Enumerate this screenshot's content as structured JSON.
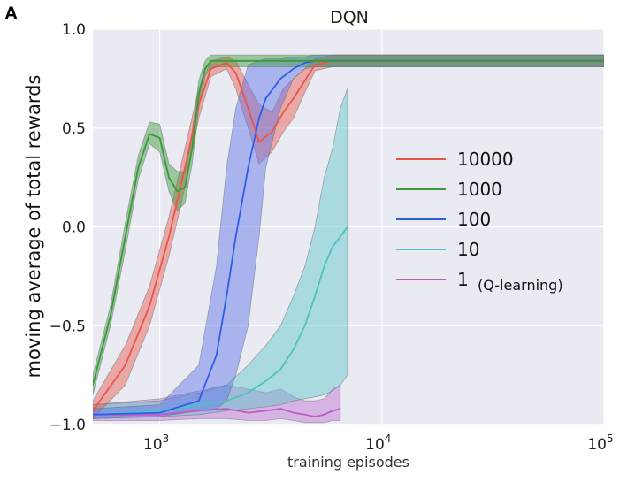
{
  "panel_letter": "A",
  "chart_data": {
    "type": "line",
    "title": "DQN",
    "xlabel": "training episodes",
    "ylabel": "moving average of total rewards",
    "xscale": "log",
    "xlim": [
      500,
      100000
    ],
    "ylim": [
      -1.0,
      1.0
    ],
    "grid": true,
    "legend_placement": "right",
    "y_ticks": [
      "−1.0",
      "−0.5",
      "0.0",
      "0.5",
      "1.0"
    ],
    "x_ticks": [
      {
        "base": "10",
        "exp": "3",
        "value": 1000
      },
      {
        "base": "10",
        "exp": "4",
        "value": 10000
      },
      {
        "base": "10",
        "exp": "5",
        "value": 100000
      }
    ],
    "legend_note": "(Q-learning)",
    "series": [
      {
        "name": "10000",
        "color": "#e8564a",
        "band_color": "#e8564a",
        "x": [
          500,
          700,
          900,
          1100,
          1300,
          1500,
          1700,
          2000,
          2200,
          2500,
          2800,
          3200,
          3600,
          4000,
          4500,
          5000,
          6000,
          8000,
          10000,
          20000,
          50000,
          100000
        ],
        "y": [
          -0.93,
          -0.7,
          -0.4,
          -0.05,
          0.3,
          0.62,
          0.8,
          0.83,
          0.78,
          0.6,
          0.43,
          0.48,
          0.58,
          0.65,
          0.74,
          0.82,
          0.84,
          0.84,
          0.84,
          0.84,
          0.84,
          0.84
        ],
        "lo": [
          -0.97,
          -0.8,
          -0.5,
          -0.15,
          0.2,
          0.55,
          0.76,
          0.8,
          0.7,
          0.5,
          0.32,
          0.38,
          0.48,
          0.55,
          0.68,
          0.79,
          0.81,
          0.81,
          0.81,
          0.81,
          0.81,
          0.81
        ],
        "hi": [
          -0.88,
          -0.6,
          -0.3,
          0.05,
          0.4,
          0.7,
          0.84,
          0.86,
          0.84,
          0.72,
          0.62,
          0.58,
          0.7,
          0.75,
          0.8,
          0.85,
          0.87,
          0.87,
          0.87,
          0.87,
          0.87,
          0.87
        ]
      },
      {
        "name": "1000",
        "color": "#3a9a3a",
        "band_color": "#3a9a3a",
        "x": [
          500,
          600,
          700,
          800,
          900,
          1000,
          1100,
          1200,
          1300,
          1400,
          1500,
          1600,
          1700,
          1800,
          2000,
          2500,
          3000,
          5000,
          10000,
          20000,
          50000,
          100000
        ],
        "y": [
          -0.8,
          -0.45,
          -0.05,
          0.3,
          0.47,
          0.45,
          0.25,
          0.18,
          0.2,
          0.4,
          0.67,
          0.8,
          0.84,
          0.84,
          0.84,
          0.84,
          0.84,
          0.84,
          0.84,
          0.84,
          0.84,
          0.84
        ],
        "lo": [
          -0.85,
          -0.5,
          -0.12,
          0.24,
          0.42,
          0.38,
          0.18,
          0.08,
          0.12,
          0.32,
          0.6,
          0.76,
          0.81,
          0.81,
          0.81,
          0.81,
          0.81,
          0.81,
          0.81,
          0.81,
          0.81,
          0.81
        ],
        "hi": [
          -0.75,
          -0.4,
          0.02,
          0.36,
          0.53,
          0.52,
          0.32,
          0.28,
          0.28,
          0.48,
          0.74,
          0.84,
          0.87,
          0.87,
          0.87,
          0.87,
          0.87,
          0.87,
          0.87,
          0.87,
          0.87,
          0.87
        ]
      },
      {
        "name": "100",
        "color": "#2e5ee6",
        "band_color": "#5a74e8",
        "x": [
          500,
          1000,
          1500,
          1800,
          2000,
          2200,
          2500,
          2800,
          3000,
          3500,
          4000,
          4500,
          5000,
          10000,
          20000,
          50000,
          100000
        ],
        "y": [
          -0.95,
          -0.94,
          -0.88,
          -0.65,
          -0.35,
          -0.05,
          0.3,
          0.55,
          0.65,
          0.75,
          0.8,
          0.83,
          0.84,
          0.84,
          0.84,
          0.84,
          0.84
        ],
        "lo": [
          -0.97,
          -0.96,
          -0.93,
          -0.92,
          -0.88,
          -0.75,
          -0.5,
          -0.05,
          0.3,
          0.6,
          0.75,
          0.8,
          0.81,
          0.81,
          0.81,
          0.81,
          0.81
        ],
        "hi": [
          -0.92,
          -0.9,
          -0.7,
          -0.2,
          0.3,
          0.6,
          0.82,
          0.84,
          0.85,
          0.85,
          0.86,
          0.86,
          0.87,
          0.87,
          0.87,
          0.87,
          0.87
        ]
      },
      {
        "name": "10",
        "color": "#4ec2c2",
        "band_color": "#5cc8c8",
        "x": [
          500,
          1000,
          1500,
          2000,
          2500,
          3000,
          3500,
          4000,
          4500,
          5000,
          5500,
          6000,
          6500,
          7000
        ],
        "y": [
          -0.95,
          -0.93,
          -0.9,
          -0.88,
          -0.84,
          -0.78,
          -0.72,
          -0.62,
          -0.5,
          -0.35,
          -0.2,
          -0.1,
          -0.05,
          0.0
        ],
        "lo": [
          -0.97,
          -0.96,
          -0.95,
          -0.93,
          -0.92,
          -0.91,
          -0.9,
          -0.88,
          -0.87,
          -0.86,
          -0.85,
          -0.83,
          -0.8,
          -0.75
        ],
        "hi": [
          -0.9,
          -0.88,
          -0.84,
          -0.8,
          -0.7,
          -0.6,
          -0.5,
          -0.35,
          -0.2,
          0.0,
          0.25,
          0.4,
          0.6,
          0.7
        ]
      },
      {
        "name": "1",
        "color": "#b95cc8",
        "band_color": "#c070d0",
        "x": [
          500,
          1000,
          1500,
          2000,
          2500,
          3000,
          3500,
          4000,
          4500,
          5000,
          5500,
          6000,
          6500
        ],
        "y": [
          -0.95,
          -0.95,
          -0.93,
          -0.92,
          -0.94,
          -0.93,
          -0.92,
          -0.94,
          -0.95,
          -0.96,
          -0.95,
          -0.93,
          -0.92
        ],
        "lo": [
          -0.98,
          -0.98,
          -0.97,
          -0.97,
          -0.98,
          -0.98,
          -0.97,
          -0.98,
          -0.99,
          -0.99,
          -0.99,
          -0.98,
          -0.98
        ],
        "hi": [
          -0.9,
          -0.87,
          -0.83,
          -0.8,
          -0.82,
          -0.84,
          -0.82,
          -0.86,
          -0.88,
          -0.88,
          -0.87,
          -0.82,
          -0.8
        ]
      }
    ]
  }
}
